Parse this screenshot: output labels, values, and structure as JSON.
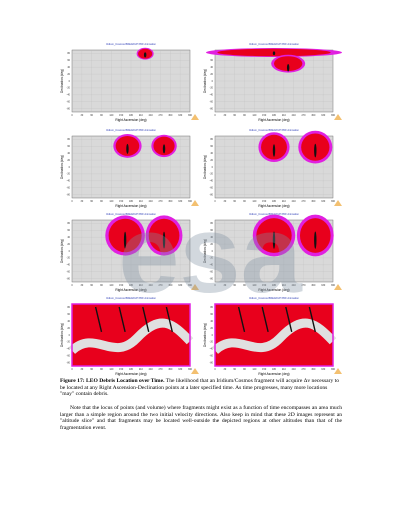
{
  "figure": {
    "panel_title": "Iridium_Cosmos BREAKUP PDF Animation",
    "x_label": "Right Ascension (deg)",
    "y_label": "Declination (deg)",
    "xticks": [
      "0",
      "30",
      "60",
      "90",
      "120",
      "150",
      "180",
      "210",
      "240",
      "270",
      "300",
      "330",
      "360"
    ],
    "yticks": [
      "80",
      "60",
      "40",
      "20",
      "0",
      "-20",
      "-40",
      "-60",
      "-80"
    ],
    "watermark": "esa",
    "caption_label": "Figure 17: LEO Debris Location over Time.",
    "caption_text": "The likelihood that an Iridium/Cosmos fragment will acquire Δv necessary to be located at any Right Ascension-Declination points at a later specified time. As time progresses, many more locations \"may\" contain debris."
  },
  "body": {
    "paragraph": "Note that the locus of points (and volume) where fragments might exist as a function of time encompasses an area much larger than a simple region around the two initial velocity directions. Also keep in mind that these 2D images represent an \"altitude slice\" and that fragments may be located well-outside the depicted regions at other altitudes than that of the fragmentation event."
  }
}
